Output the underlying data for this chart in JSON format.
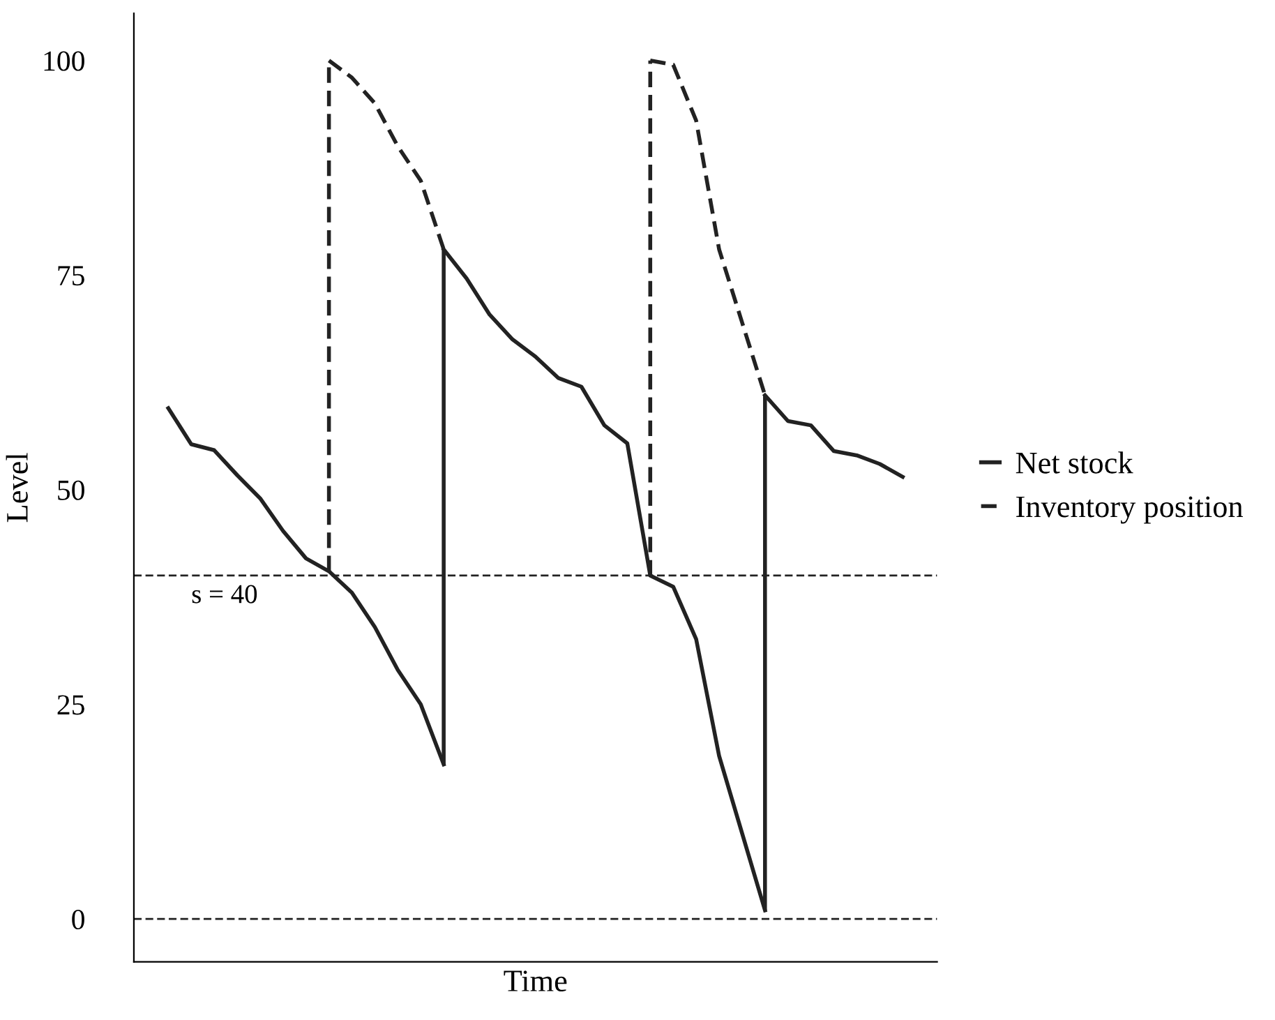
{
  "chart_data": {
    "type": "line",
    "xlabel": "Time",
    "ylabel": "Level",
    "categories": [
      null,
      null,
      null,
      null,
      null,
      null,
      null,
      null,
      null,
      null,
      null,
      null,
      null,
      null,
      null,
      null,
      null,
      null,
      null,
      null,
      null,
      null,
      null,
      null,
      null,
      null,
      null,
      null,
      null,
      null,
      null,
      null,
      null,
      null,
      null
    ],
    "series": [
      {
        "name": "Net stock",
        "color": "#222222",
        "line_style": "solid",
        "values": [
          null,
          59.5,
          55.3,
          54.6,
          51.7,
          49,
          45.2,
          42,
          40.5,
          38,
          34,
          29,
          25,
          18,
          null,
          null,
          null,
          null,
          null,
          null,
          null,
          null,
          null,
          null,
          null,
          null,
          null,
          null,
          null,
          null,
          null,
          null,
          null,
          null,
          null
        ]
      },
      {
        "color": "#222222",
        "line_style": "solid",
        "values": [
          null,
          null,
          null,
          null,
          null,
          null,
          null,
          null,
          null,
          null,
          null,
          null,
          null,
          78,
          74.6,
          70.4,
          67.5,
          65.5,
          63,
          62,
          57.5,
          55.4,
          40,
          38.7,
          32.6,
          19,
          10,
          1,
          null,
          null,
          null,
          null,
          null,
          null,
          null
        ],
        "errors": [
          null,
          null,
          null,
          null,
          null,
          null,
          null,
          null,
          null,
          null,
          null,
          null,
          null,
          [
            18,
            78
          ],
          null,
          null,
          null,
          null,
          null,
          null,
          null,
          null,
          null,
          null,
          null,
          null,
          null,
          null,
          null,
          null,
          null,
          null,
          null,
          null,
          null
        ]
      },
      {
        "color": "#222222",
        "line_style": "solid",
        "values": [
          null,
          null,
          null,
          null,
          null,
          null,
          null,
          null,
          null,
          null,
          null,
          null,
          null,
          null,
          null,
          null,
          null,
          null,
          null,
          null,
          null,
          null,
          null,
          null,
          null,
          null,
          null,
          61,
          58,
          57.5,
          54.5,
          54,
          53,
          51.5,
          null
        ],
        "errors": [
          null,
          null,
          null,
          null,
          null,
          null,
          null,
          null,
          null,
          null,
          null,
          null,
          null,
          null,
          null,
          null,
          null,
          null,
          null,
          null,
          null,
          null,
          null,
          null,
          null,
          null,
          null,
          [
            1,
            61
          ],
          null,
          null,
          null,
          null,
          null,
          null,
          null
        ]
      },
      {
        "name": "Inventory position",
        "color": "#222222",
        "line_style": "dashed",
        "values": [
          null,
          null,
          null,
          null,
          null,
          null,
          null,
          null,
          100,
          98,
          95,
          90,
          86,
          78,
          null,
          null,
          null,
          null,
          null,
          null,
          null,
          null,
          null,
          null,
          null,
          null,
          null,
          null,
          null,
          null,
          null,
          null,
          null,
          null,
          null
        ],
        "errors": [
          null,
          null,
          null,
          null,
          null,
          null,
          null,
          null,
          [
            40.5,
            100
          ],
          null,
          null,
          null,
          null,
          null,
          null,
          null,
          null,
          null,
          null,
          null,
          null,
          null,
          null,
          null,
          null,
          null,
          null,
          null,
          null,
          null,
          null,
          null,
          null,
          null,
          null
        ]
      },
      {
        "color": "#222222",
        "line_style": "dashed",
        "values": [
          null,
          null,
          null,
          null,
          null,
          null,
          null,
          null,
          null,
          null,
          null,
          null,
          null,
          null,
          null,
          null,
          null,
          null,
          null,
          null,
          null,
          null,
          100,
          99.5,
          93,
          78,
          69.5,
          61,
          null,
          null,
          null,
          null,
          null,
          null,
          null
        ],
        "errors": [
          null,
          null,
          null,
          null,
          null,
          null,
          null,
          null,
          null,
          null,
          null,
          null,
          null,
          null,
          null,
          null,
          null,
          null,
          null,
          null,
          null,
          null,
          [
            40,
            100
          ],
          null,
          null,
          null,
          null,
          null,
          null,
          null,
          null,
          null,
          null,
          null,
          null
        ]
      }
    ],
    "ylim": [
      -5,
      105.5
    ],
    "yticks": [
      0,
      25,
      50,
      75,
      100
    ],
    "tick_labels": "y",
    "grid": false,
    "legend": "right",
    "ref_lines": [
      {
        "axis": "y",
        "value": 40,
        "label": "s = 40",
        "line_style": "dashed",
        "color": "#222222"
      },
      {
        "axis": "y",
        "value": 0,
        "label": null,
        "line_style": "dashed",
        "color": "#222222"
      }
    ]
  }
}
